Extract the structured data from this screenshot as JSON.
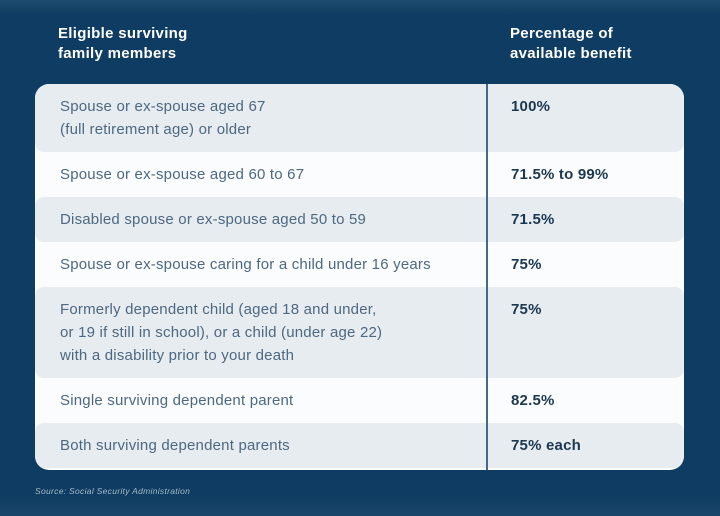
{
  "header": {
    "col_members": "Eligible surviving\nfamily members",
    "col_benefit": "Percentage of\navailable benefit"
  },
  "table": {
    "rows": [
      {
        "member": "Spouse or ex-spouse aged 67\n(full retirement age) or older",
        "benefit": "100%"
      },
      {
        "member": "Spouse or ex-spouse aged 60 to 67",
        "benefit": "71.5% to 99%"
      },
      {
        "member": "Disabled spouse or ex-spouse aged 50 to 59",
        "benefit": "71.5%"
      },
      {
        "member": "Spouse or ex-spouse caring for a child under 16 years",
        "benefit": "75%"
      },
      {
        "member": "Formerly dependent child (aged 18 and under,\nor 19 if still in school), or a child (under age 22)\nwith a disability prior to your death",
        "benefit": "75%"
      },
      {
        "member": "Single surviving dependent parent",
        "benefit": "82.5%"
      },
      {
        "member": "Both surviving dependent parents",
        "benefit": "75% each"
      }
    ]
  },
  "footer": {
    "source": "Source: Social Security Administration"
  },
  "colors": {
    "background": "#0e3c62",
    "row_stripe": "#e7ecf1",
    "row_plain": "#fbfcfd",
    "column_divider": "#46688a",
    "header_text": "#ffffff",
    "member_text": "#4d6880",
    "benefit_text": "#1b3850",
    "source_text": "#a6bac9"
  },
  "chart_data": {
    "type": "table",
    "title": "",
    "columns": [
      "Eligible surviving family members",
      "Percentage of available benefit"
    ],
    "rows": [
      [
        "Spouse or ex-spouse aged 67 (full retirement age) or older",
        "100%"
      ],
      [
        "Spouse or ex-spouse aged 60 to 67",
        "71.5% to 99%"
      ],
      [
        "Disabled spouse or ex-spouse aged 50 to 59",
        "71.5%"
      ],
      [
        "Spouse or ex-spouse caring for a child under 16 years",
        "75%"
      ],
      [
        "Formerly dependent child (aged 18 and under, or 19 if still in school), or a child (under age 22) with a disability prior to your death",
        "75%"
      ],
      [
        "Single surviving dependent parent",
        "82.5%"
      ],
      [
        "Both surviving dependent parents",
        "75% each"
      ]
    ],
    "source": "Source: Social Security Administration",
    "layout": {
      "stripe_pattern": "odd rows shaded",
      "divider": "vertical line between columns"
    }
  }
}
